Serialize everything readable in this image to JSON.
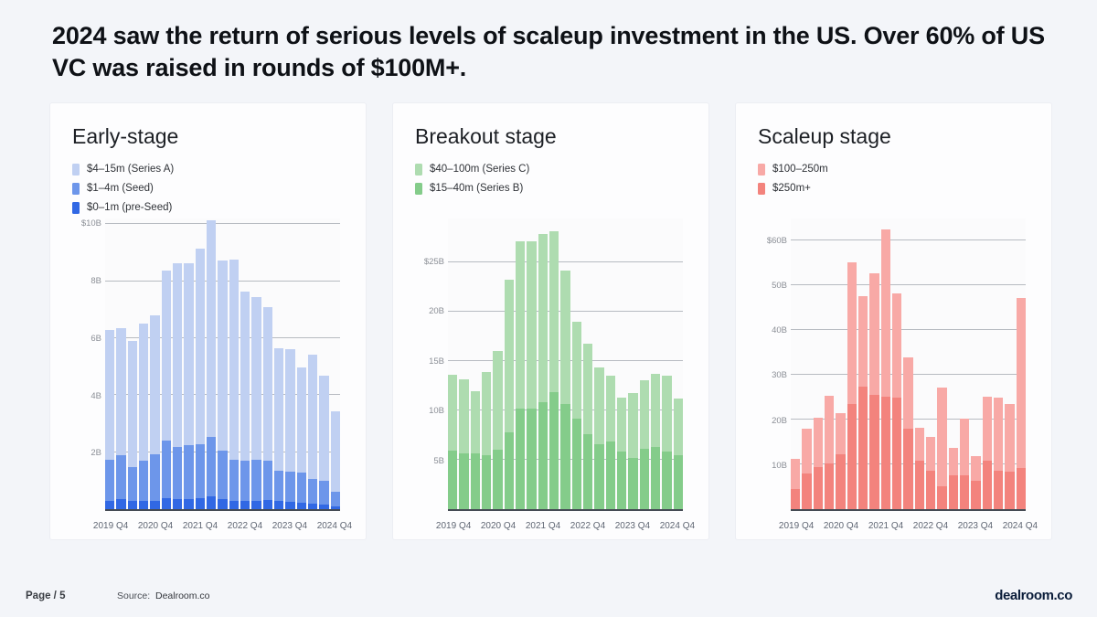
{
  "slide": {
    "title": "2024 saw the return of serious levels of scaleup investment in the US. Over 60% of US VC was raised in rounds of $100M+.",
    "footer": {
      "page_label": "Page / 5",
      "source_label": "Source:",
      "source_value": "Dealroom.co",
      "brand": "dealroom.co"
    }
  },
  "chart_data": [
    {
      "type": "bar",
      "stacked": true,
      "title": "Early-stage",
      "unit": "$B",
      "ylim": [
        0,
        10.2
      ],
      "y_ticks": [
        {
          "value": 10,
          "label": "$10B"
        },
        {
          "value": 8,
          "label": "8B"
        },
        {
          "value": 6,
          "label": "6B"
        },
        {
          "value": 4,
          "label": "4B"
        },
        {
          "value": 2,
          "label": "2B"
        }
      ],
      "categories": [
        "2019 Q4",
        "2020 Q1",
        "2020 Q2",
        "2020 Q3",
        "2020 Q4",
        "2021 Q1",
        "2021 Q2",
        "2021 Q3",
        "2021 Q4",
        "2022 Q1",
        "2022 Q2",
        "2022 Q3",
        "2022 Q4",
        "2023 Q1",
        "2023 Q2",
        "2023 Q3",
        "2023 Q4",
        "2024 Q1",
        "2024 Q2",
        "2024 Q3",
        "2024 Q4"
      ],
      "x_tick_every": 4,
      "x_tick_labels": [
        "2019 Q4",
        "2020 Q4",
        "2021 Q4",
        "2022 Q4",
        "2023 Q4",
        "2024 Q4"
      ],
      "legend_position": "top-left",
      "grid": true,
      "series": [
        {
          "name": "$4–15m (Series A)",
          "color": "#c0d0f2",
          "values": [
            4.55,
            4.45,
            4.4,
            4.8,
            4.9,
            5.96,
            6.43,
            6.39,
            6.86,
            7.59,
            6.67,
            7.02,
            5.92,
            5.72,
            5.39,
            4.31,
            4.31,
            3.68,
            4.37,
            3.69,
            2.83
          ]
        },
        {
          "name": "$1–4m (Seed)",
          "color": "#6d96ea",
          "values": [
            1.45,
            1.54,
            1.21,
            1.4,
            1.61,
            2.0,
            1.84,
            1.88,
            1.9,
            2.1,
            1.7,
            1.43,
            1.4,
            1.43,
            1.37,
            1.06,
            1.04,
            1.04,
            0.87,
            0.82,
            0.51
          ]
        },
        {
          "name": "$0–1m (pre-Seed)",
          "color": "#3168e4",
          "values": [
            0.28,
            0.35,
            0.28,
            0.3,
            0.3,
            0.4,
            0.35,
            0.35,
            0.37,
            0.45,
            0.35,
            0.3,
            0.3,
            0.3,
            0.33,
            0.28,
            0.27,
            0.24,
            0.19,
            0.17,
            0.09
          ]
        }
      ]
    },
    {
      "type": "bar",
      "stacked": true,
      "title": "Breakout stage",
      "unit": "$B",
      "ylim": [
        0,
        29.4
      ],
      "y_ticks": [
        {
          "value": 25,
          "label": "$25B"
        },
        {
          "value": 20,
          "label": "20B"
        },
        {
          "value": 15,
          "label": "15B"
        },
        {
          "value": 10,
          "label": "10B"
        },
        {
          "value": 5,
          "label": "5B"
        }
      ],
      "categories": [
        "2019 Q4",
        "2020 Q1",
        "2020 Q2",
        "2020 Q3",
        "2020 Q4",
        "2021 Q1",
        "2021 Q2",
        "2021 Q3",
        "2021 Q4",
        "2022 Q1",
        "2022 Q2",
        "2022 Q3",
        "2022 Q4",
        "2023 Q1",
        "2023 Q2",
        "2023 Q3",
        "2023 Q4",
        "2024 Q1",
        "2024 Q2",
        "2024 Q3",
        "2024 Q4"
      ],
      "x_tick_every": 4,
      "x_tick_labels": [
        "2019 Q4",
        "2020 Q4",
        "2021 Q4",
        "2022 Q4",
        "2023 Q4",
        "2024 Q4"
      ],
      "legend_position": "top-left",
      "grid": true,
      "series": [
        {
          "name": "$40–100m (Series C)",
          "color": "#aedcb0",
          "values": [
            7.7,
            7.5,
            6.3,
            8.4,
            10.0,
            15.4,
            16.9,
            16.9,
            17.0,
            16.3,
            13.5,
            9.8,
            9.1,
            7.7,
            6.7,
            5.5,
            6.5,
            6.9,
            7.4,
            7.7,
            5.7
          ]
        },
        {
          "name": "$15–40m (Series B)",
          "color": "#84cc8a",
          "values": [
            5.9,
            5.6,
            5.6,
            5.5,
            6.0,
            7.8,
            10.2,
            10.2,
            10.8,
            11.8,
            10.6,
            9.2,
            7.6,
            6.6,
            6.8,
            5.8,
            5.2,
            6.1,
            6.3,
            5.8,
            5.5
          ]
        }
      ]
    },
    {
      "type": "bar",
      "stacked": true,
      "title": "Scaleup stage",
      "unit": "$B",
      "ylim": [
        0,
        65
      ],
      "y_ticks": [
        {
          "value": 60,
          "label": "$60B"
        },
        {
          "value": 50,
          "label": "50B"
        },
        {
          "value": 40,
          "label": "40B"
        },
        {
          "value": 30,
          "label": "30B"
        },
        {
          "value": 20,
          "label": "20B"
        },
        {
          "value": 10,
          "label": "10B"
        }
      ],
      "categories": [
        "2019 Q4",
        "2020 Q1",
        "2020 Q2",
        "2020 Q3",
        "2020 Q4",
        "2021 Q1",
        "2021 Q2",
        "2021 Q3",
        "2021 Q4",
        "2022 Q1",
        "2022 Q2",
        "2022 Q3",
        "2022 Q4",
        "2023 Q1",
        "2023 Q2",
        "2023 Q3",
        "2023 Q4",
        "2024 Q1",
        "2024 Q2",
        "2024 Q3",
        "2024 Q4"
      ],
      "x_tick_every": 4,
      "x_tick_labels": [
        "2019 Q4",
        "2020 Q4",
        "2021 Q4",
        "2022 Q4",
        "2023 Q4",
        "2024 Q4"
      ],
      "legend_position": "top-left",
      "grid": true,
      "series": [
        {
          "name": "$100–250m",
          "color": "#f8a9a6",
          "values": [
            6.7,
            10.0,
            10.9,
            15.1,
            9.2,
            31.6,
            20.3,
            27.1,
            37.4,
            23.3,
            15.9,
            7.2,
            7.5,
            22.0,
            6.2,
            12.7,
            5.6,
            14.3,
            16.5,
            15.1,
            38.0
          ]
        },
        {
          "name": "$250m+",
          "color": "#f3837d",
          "values": [
            4.5,
            8.0,
            9.5,
            10.2,
            12.2,
            23.6,
            27.3,
            25.6,
            25.2,
            25.0,
            18.0,
            10.9,
            8.6,
            5.2,
            7.5,
            7.6,
            6.3,
            10.9,
            8.5,
            8.4,
            9.2
          ]
        }
      ]
    }
  ]
}
